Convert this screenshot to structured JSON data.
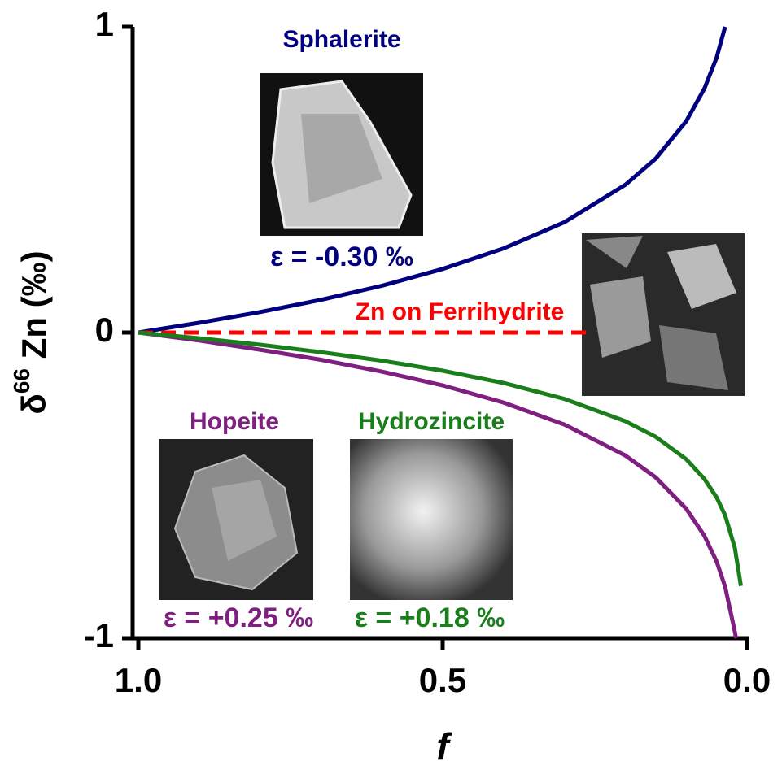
{
  "chart_data": {
    "type": "line",
    "y_label": {
      "symbol": "δ",
      "sup": "66",
      "rest": " Zn (‰)"
    },
    "x_label": "f",
    "xlim": [
      1,
      0
    ],
    "ylim": [
      -1,
      1
    ],
    "xticks": [
      {
        "value": 1,
        "label": "1.0"
      },
      {
        "value": 0.5,
        "label": "0.5"
      },
      {
        "value": 0,
        "label": "0.0"
      }
    ],
    "yticks": [
      1,
      0,
      -1
    ],
    "series": [
      {
        "name": "Sphalerite",
        "color": "#00007f",
        "dashed": false,
        "x": [
          1.0,
          0.9,
          0.8,
          0.7,
          0.6,
          0.5,
          0.4,
          0.3,
          0.2,
          0.15,
          0.1,
          0.07,
          0.05,
          0.036
        ],
        "values": [
          0,
          0.032,
          0.067,
          0.107,
          0.153,
          0.208,
          0.275,
          0.361,
          0.483,
          0.569,
          0.691,
          0.798,
          0.899,
          1.0
        ]
      },
      {
        "name": "Zn on Ferrihydrite",
        "color": "#ff0000",
        "dashed": true,
        "x": [
          1.0,
          0.26
        ],
        "values": [
          0,
          0
        ]
      },
      {
        "name": "Hopeite",
        "color": "#7f1f7f",
        "dashed": false,
        "x": [
          1.0,
          0.9,
          0.8,
          0.7,
          0.6,
          0.5,
          0.4,
          0.3,
          0.2,
          0.15,
          0.1,
          0.07,
          0.05,
          0.036,
          0.02,
          0.018
        ],
        "values": [
          0,
          -0.026,
          -0.056,
          -0.089,
          -0.128,
          -0.173,
          -0.229,
          -0.301,
          -0.402,
          -0.474,
          -0.576,
          -0.665,
          -0.749,
          -0.831,
          -0.978,
          -1.0
        ]
      },
      {
        "name": "Hydrozincite",
        "color": "#1a7f1a",
        "dashed": false,
        "x": [
          1.0,
          0.9,
          0.8,
          0.7,
          0.6,
          0.5,
          0.4,
          0.3,
          0.2,
          0.15,
          0.1,
          0.07,
          0.05,
          0.036,
          0.02,
          0.01
        ],
        "values": [
          0,
          -0.019,
          -0.04,
          -0.064,
          -0.092,
          -0.125,
          -0.165,
          -0.217,
          -0.29,
          -0.341,
          -0.414,
          -0.479,
          -0.539,
          -0.598,
          -0.704,
          -0.829
        ]
      }
    ],
    "annotations": [
      {
        "text": "ε = -0.30 ‰",
        "color": "#00007f"
      },
      {
        "text": "ε = +0.25 ‰",
        "color": "#7f1f7f"
      },
      {
        "text": "ε = +0.18 ‰",
        "color": "#1a7f1a"
      }
    ]
  }
}
